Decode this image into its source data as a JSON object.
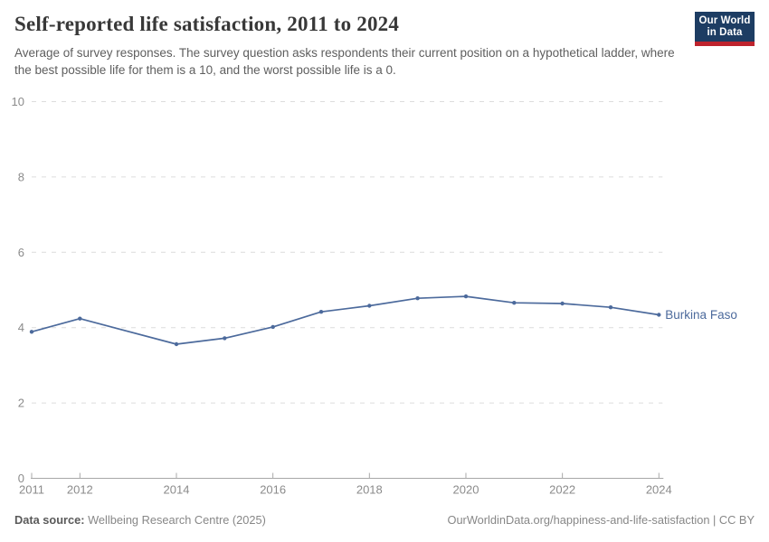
{
  "header": {
    "title": "Self-reported life satisfaction, 2011 to 2024",
    "subtitle": "Average of survey responses. The survey question asks respondents their current position on a hypothetical ladder, where the best possible life for them is a 10, and the worst possible life is a 0.",
    "logo": {
      "line1": "Our World",
      "line2": "in Data",
      "bg_color": "#1d3d63",
      "accent_color": "#be232d"
    }
  },
  "chart_data": {
    "type": "line",
    "title": "Self-reported life satisfaction, 2011 to 2024",
    "xlabel": "",
    "ylabel": "",
    "xlim": [
      2011,
      2024
    ],
    "ylim": [
      0,
      10
    ],
    "yticks": [
      0,
      2,
      4,
      6,
      8,
      10
    ],
    "xticks": [
      2011,
      2012,
      2014,
      2016,
      2018,
      2020,
      2022,
      2024
    ],
    "grid": "horizontal-dashed",
    "legend_position": "end-of-line-label",
    "missing_years": [
      2013
    ],
    "series": [
      {
        "name": "Burkina Faso",
        "color": "#4C6A9C",
        "points": [
          [
            2011,
            3.89
          ],
          [
            2012,
            4.24
          ],
          [
            2014,
            3.56
          ],
          [
            2015,
            3.72
          ],
          [
            2016,
            4.02
          ],
          [
            2017,
            4.42
          ],
          [
            2018,
            4.58
          ],
          [
            2019,
            4.78
          ],
          [
            2020,
            4.83
          ],
          [
            2021,
            4.66
          ],
          [
            2022,
            4.64
          ],
          [
            2023,
            4.54
          ],
          [
            2024,
            4.34
          ]
        ]
      }
    ]
  },
  "footer": {
    "datasource_label": "Data source:",
    "datasource_value": " Wellbeing Research Centre (2025)",
    "credit": "OurWorldinData.org/happiness-and-life-satisfaction | CC BY"
  },
  "colors": {
    "series": "#4C6A9C",
    "grid": "#dcdcdc",
    "axis": "#a8a8a8",
    "tick_text": "#8b8b8b",
    "title_text": "#383838",
    "subtitle_text": "#5e5e5e",
    "footer_text": "#878787"
  }
}
